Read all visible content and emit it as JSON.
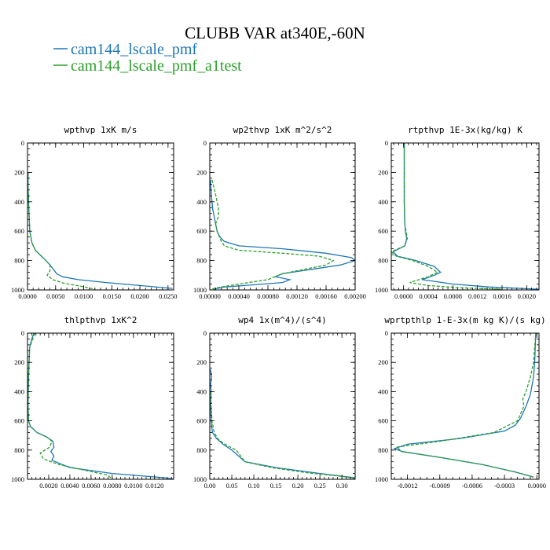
{
  "figure": {
    "title": "CLUBB VAR at340E,-60N",
    "legend": [
      {
        "label": "cam144_lscale_pmf",
        "color": "#1f77b4",
        "dash": "solid"
      },
      {
        "label": "cam144_lscale_pmf_a1test",
        "color": "#2ca02c",
        "dash": "dashed"
      }
    ]
  },
  "chart_data": [
    {
      "type": "line",
      "title": "wpthvp  1xK m/s",
      "xlim": [
        0,
        0.026
      ],
      "ylim": [
        1000,
        0
      ],
      "xticks": [
        0,
        0.005,
        0.01,
        0.015,
        0.02,
        0.025
      ],
      "xtick_labels": [
        "0.0000",
        "0.0050",
        "0.0100",
        "0.0150",
        "0.0200",
        "0.0250"
      ],
      "yticks": [
        0,
        200,
        400,
        600,
        800,
        1000
      ],
      "ytick_labels": [
        "0",
        "200",
        "400",
        "600",
        "800",
        "1000"
      ],
      "series": [
        {
          "color": "#1f77b4",
          "dash": "solid",
          "x": [
            0.0001,
            0.0001,
            0.0002,
            0.0003,
            0.0004,
            0.0008,
            0.0014,
            0.0022,
            0.003,
            0.004,
            0.0048,
            0.0052,
            0.0062,
            0.009,
            0.014,
            0.02,
            0.0258
          ],
          "y": [
            200,
            300,
            400,
            500,
            600,
            680,
            730,
            760,
            790,
            830,
            870,
            890,
            910,
            930,
            950,
            970,
            990
          ]
        },
        {
          "color": "#2ca02c",
          "dash": "dashed",
          "x": [
            0.0001,
            0.0001,
            0.0002,
            0.0003,
            0.0004,
            0.0008,
            0.0014,
            0.0022,
            0.003,
            0.004,
            0.004,
            0.0035,
            0.0045,
            0.0065,
            0.0095,
            0.012
          ],
          "y": [
            200,
            300,
            400,
            500,
            600,
            680,
            730,
            760,
            790,
            830,
            870,
            900,
            930,
            955,
            975,
            995
          ]
        }
      ]
    },
    {
      "type": "line",
      "title": "wp2thvp  1xK m^2/s^2",
      "xlim": [
        0,
        0.002
      ],
      "ylim": [
        1000,
        0
      ],
      "xticks": [
        0,
        0.0004,
        0.0008,
        0.0012,
        0.0016,
        0.002
      ],
      "xtick_labels": [
        "0.00000",
        "0.00040",
        "0.00080",
        "0.00120",
        "0.00160",
        "0.00200"
      ],
      "yticks": [
        0,
        200,
        400,
        600,
        800,
        1000
      ],
      "ytick_labels": [
        "0",
        "200",
        "400",
        "600",
        "800",
        "1000"
      ],
      "series": [
        {
          "color": "#1f77b4",
          "dash": "solid",
          "x": [
            1e-05,
            2e-05,
            4e-05,
            6e-05,
            8e-05,
            0.0001,
            0.00014,
            0.0002,
            0.0004,
            0.001,
            0.0016,
            0.00195,
            0.002,
            0.0018,
            0.0014,
            0.001,
            0.0009,
            0.0011,
            0.001,
            0.0006,
            0.0002,
            5e-05
          ],
          "y": [
            250,
            350,
            450,
            500,
            550,
            600,
            640,
            670,
            700,
            720,
            750,
            780,
            800,
            830,
            860,
            890,
            910,
            930,
            950,
            965,
            980,
            995
          ]
        },
        {
          "color": "#2ca02c",
          "dash": "dashed",
          "x": [
            3e-05,
            8e-05,
            0.00012,
            0.00012,
            8e-05,
            0.0001,
            0.00015,
            0.0002,
            0.0004,
            0.001,
            0.0015,
            0.0017,
            0.0016,
            0.0013,
            0.001,
            0.0008,
            0.0004,
            0.0001,
            2e-05
          ],
          "y": [
            250,
            350,
            450,
            500,
            550,
            600,
            660,
            700,
            730,
            750,
            770,
            800,
            830,
            860,
            890,
            930,
            960,
            985,
            995
          ]
        }
      ]
    },
    {
      "type": "line",
      "title": "rtpthvp  1E-3x(kg/kg) K",
      "xlim": [
        -0.0002,
        0.0022
      ],
      "ylim": [
        1000,
        0
      ],
      "xticks": [
        0,
        0.0004,
        0.0008,
        0.0012,
        0.0016,
        0.002
      ],
      "xtick_labels": [
        "0.0000",
        "0.0004",
        "0.0008",
        "0.0012",
        "0.0016",
        "0.0020"
      ],
      "yticks": [
        0,
        200,
        400,
        600,
        800,
        1000
      ],
      "ytick_labels": [
        "0",
        "200",
        "400",
        "600",
        "800",
        "1000"
      ],
      "series": [
        {
          "color": "#1f77b4",
          "dash": "solid",
          "x": [
            1e-05,
            1e-05,
            1e-05,
            2e-05,
            3e-05,
            5e-05,
            2e-05,
            -0.00017,
            -0.0001,
            0.0002,
            0.0005,
            0.0006,
            0.0005,
            0.0003,
            0.0008,
            0.0014,
            0.0022
          ],
          "y": [
            0,
            200,
            400,
            550,
            600,
            650,
            700,
            740,
            770,
            800,
            840,
            880,
            900,
            930,
            960,
            980,
            995
          ]
        },
        {
          "color": "#2ca02c",
          "dash": "dashed",
          "x": [
            1e-05,
            1e-05,
            1e-05,
            2e-05,
            4e-05,
            6e-05,
            2e-05,
            -0.0002,
            -0.00012,
            0.00015,
            0.0004,
            0.00055,
            0.0004,
            0.0001,
            0.0004,
            0.0009,
            0.0016
          ],
          "y": [
            0,
            200,
            400,
            550,
            600,
            650,
            700,
            740,
            770,
            800,
            840,
            880,
            910,
            950,
            970,
            985,
            995
          ]
        }
      ]
    },
    {
      "type": "line",
      "title": "thlpthvp  1xK^2",
      "xlim": [
        0,
        0.0138
      ],
      "ylim": [
        1000,
        0
      ],
      "xticks": [
        0.002,
        0.004,
        0.006,
        0.008,
        0.01,
        0.012
      ],
      "xtick_labels": [
        "0.0020",
        "0.0040",
        "0.0060",
        "0.0080",
        "0.0100",
        "0.0120"
      ],
      "yticks": [
        0,
        200,
        400,
        600,
        800,
        1000
      ],
      "ytick_labels": [
        "0",
        "200",
        "400",
        "600",
        "800",
        "1000"
      ],
      "series": [
        {
          "color": "#1f77b4",
          "dash": "solid",
          "x": [
            0.0006,
            0.0004,
            0.0002,
            0.0001,
            5e-05,
            0.0001,
            0.0003,
            0.0009,
            0.0018,
            0.0024,
            0.0025,
            0.0022,
            0.0025,
            0.0023,
            0.004,
            0.008,
            0.013,
            0.0138
          ],
          "y": [
            0,
            40,
            100,
            300,
            500,
            600,
            640,
            680,
            710,
            740,
            780,
            810,
            840,
            870,
            920,
            960,
            990,
            998
          ]
        },
        {
          "color": "#2ca02c",
          "dash": "dashed",
          "x": [
            0.0007,
            0.0005,
            0.0002,
            0.0001,
            5e-05,
            0.0001,
            0.0003,
            0.0009,
            0.0018,
            0.0023,
            0.0021,
            0.0012,
            0.0015,
            0.003,
            0.0055,
            0.0075,
            0.008
          ],
          "y": [
            0,
            40,
            100,
            300,
            500,
            600,
            640,
            680,
            710,
            740,
            780,
            820,
            860,
            900,
            940,
            970,
            995
          ]
        }
      ]
    },
    {
      "type": "line",
      "title": "wp4  1x(m^4)/(s^4)",
      "xlim": [
        0,
        0.33
      ],
      "ylim": [
        1000,
        0
      ],
      "xticks": [
        0,
        0.05,
        0.1,
        0.15,
        0.2,
        0.25,
        0.3
      ],
      "xtick_labels": [
        "0.00",
        "0.05",
        "0.10",
        "0.15",
        "0.20",
        "0.25",
        "0.30"
      ],
      "yticks": [
        0,
        200,
        400,
        600,
        800,
        1000
      ],
      "ytick_labels": [
        "0",
        "200",
        "400",
        "600",
        "800",
        "1000"
      ],
      "series": [
        {
          "color": "#1f77b4",
          "dash": "solid",
          "x": [
            0.002,
            0.004,
            0.002,
            0.003,
            0.002,
            0.003,
            0.006,
            0.015,
            0.03,
            0.05,
            0.065,
            0.08,
            0.15,
            0.25,
            0.33
          ],
          "y": [
            250,
            300,
            350,
            400,
            500,
            600,
            680,
            720,
            760,
            800,
            840,
            880,
            920,
            960,
            990
          ]
        },
        {
          "color": "#2ca02c",
          "dash": "dashed",
          "x": [
            0.002,
            0.003,
            0.005,
            0.01,
            0.02,
            0.04,
            0.06,
            0.07,
            0.08,
            0.14,
            0.22,
            0.3,
            0.33
          ],
          "y": [
            400,
            500,
            600,
            680,
            730,
            770,
            800,
            840,
            880,
            920,
            955,
            980,
            995
          ]
        }
      ]
    },
    {
      "type": "line",
      "title": "wprtpthlp  1-E-3x(m kg K)/(s kg)",
      "xlim": [
        -0.00135,
        2e-05
      ],
      "ylim": [
        1000,
        0
      ],
      "xticks": [
        -0.0012,
        -0.0009,
        -0.0006,
        -0.0003,
        0
      ],
      "xtick_labels": [
        "-0.0012",
        "-0.0009",
        "-0.0006",
        "-0.0003",
        "0.0000"
      ],
      "yticks": [
        0,
        200,
        400,
        600,
        800,
        1000
      ],
      "ytick_labels": [
        "0",
        "200",
        "400",
        "600",
        "800",
        "1000"
      ],
      "series": [
        {
          "color": "#1f77b4",
          "dash": "solid",
          "x": [
            -1e-05,
            -2e-05,
            -3e-05,
            -6e-05,
            -0.0001,
            -0.00015,
            -0.0002,
            -0.0003,
            -0.0007,
            -0.0012,
            -0.00132,
            -0.00125,
            -0.0009,
            -0.0005,
            -0.0002,
            -3e-05
          ],
          "y": [
            0,
            200,
            300,
            420,
            500,
            580,
            630,
            670,
            720,
            760,
            790,
            810,
            850,
            900,
            950,
            985
          ]
        },
        {
          "color": "#2ca02c",
          "dash": "dashed",
          "x": [
            -1e-05,
            -3e-05,
            -6e-05,
            -0.0001,
            -0.00013,
            -0.00012,
            -0.00018,
            -0.0004,
            -0.0009,
            -0.0013,
            -0.00125,
            -0.0009,
            -0.0005,
            -0.0002,
            -3e-05
          ],
          "y": [
            0,
            200,
            300,
            400,
            450,
            500,
            600,
            680,
            740,
            780,
            810,
            850,
            900,
            950,
            985
          ]
        }
      ]
    }
  ]
}
